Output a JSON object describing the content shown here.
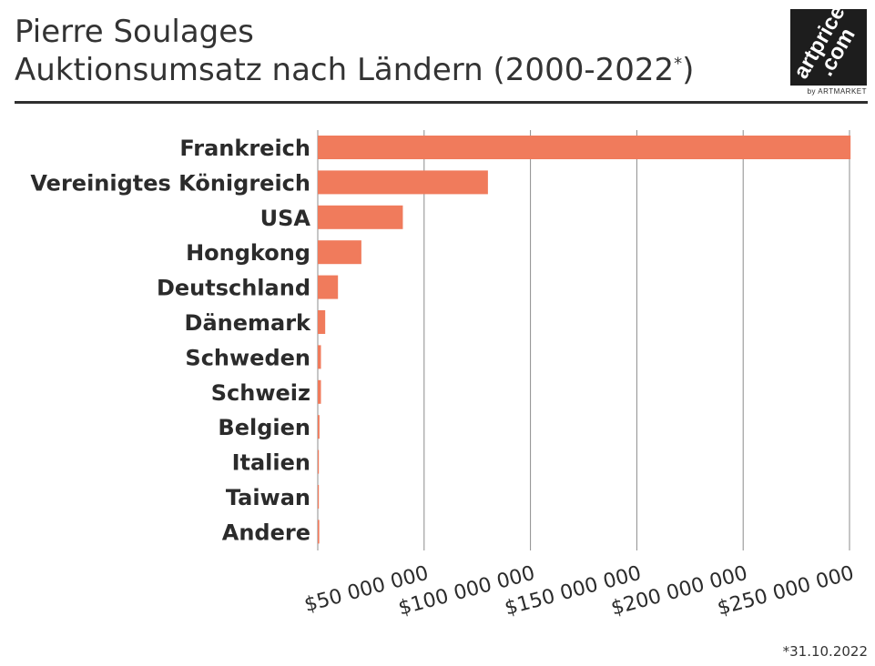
{
  "header": {
    "title_line1": "Pierre Soulages",
    "title_line2": "Auktionsumsatz nach Ländern (2000-2022",
    "title_sup": "*",
    "title_close": ")"
  },
  "logo": {
    "brand_top": "artprice",
    "brand_bottom": ".com",
    "subtitle": "by ARTMARKET"
  },
  "footnote": "*31.10.2022",
  "colors": {
    "bar": "#f07b5c",
    "grid": "#8c8c8c",
    "text": "#2b2b2b"
  },
  "chart_data": {
    "type": "bar",
    "orientation": "horizontal",
    "categories": [
      "Frankreich",
      "Vereinigtes Königreich",
      "USA",
      "Hongkong",
      "Deutschland",
      "Dänemark",
      "Schweden",
      "Schweiz",
      "Belgien",
      "Italien",
      "Taiwan",
      "Andere"
    ],
    "values": [
      250500000,
      80000000,
      40000000,
      20500000,
      9500000,
      3500000,
      1500000,
      1500000,
      800000,
      300000,
      200000,
      700000
    ],
    "xlim": [
      0,
      250000000
    ],
    "xticks": [
      50000000,
      100000000,
      150000000,
      200000000,
      250000000
    ],
    "xtick_labels": [
      "$50 000 000",
      "$100 000 000",
      "$150 000 000",
      "$200 000 000",
      "$250 000 000"
    ],
    "grid": true,
    "xlabel": "",
    "ylabel": ""
  }
}
